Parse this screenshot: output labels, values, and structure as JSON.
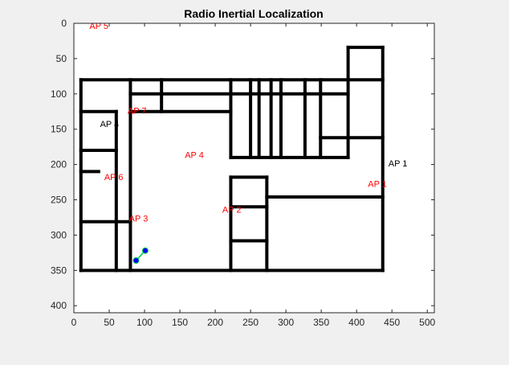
{
  "window": {
    "background": "#f0f0f0"
  },
  "chart_data": {
    "type": "scatter",
    "title": "Radio Inertial Localization",
    "xlabel": "",
    "ylabel": "",
    "xlim": [
      0,
      510
    ],
    "ylim": [
      0,
      410
    ],
    "y_reversed": true,
    "grid": false,
    "xticks": [
      0,
      50,
      100,
      150,
      200,
      250,
      300,
      350,
      400,
      450,
      500
    ],
    "yticks": [
      0,
      50,
      100,
      150,
      200,
      250,
      300,
      350,
      400
    ],
    "floor_plan_walls": [
      [
        [
          10,
          80
        ],
        [
          437,
          80
        ]
      ],
      [
        [
          10,
          350
        ],
        [
          437,
          350
        ]
      ],
      [
        [
          10,
          80
        ],
        [
          10,
          350
        ]
      ],
      [
        [
          437,
          34
        ],
        [
          437,
          350
        ]
      ],
      [
        [
          388,
          34
        ],
        [
          437,
          34
        ]
      ],
      [
        [
          388,
          34
        ],
        [
          388,
          80
        ]
      ],
      [
        [
          10,
          125
        ],
        [
          60,
          125
        ]
      ],
      [
        [
          60,
          125
        ],
        [
          60,
          350
        ]
      ],
      [
        [
          80,
          80
        ],
        [
          80,
          350
        ]
      ],
      [
        [
          10,
          180
        ],
        [
          60,
          180
        ]
      ],
      [
        [
          10,
          210
        ],
        [
          35,
          210
        ]
      ],
      [
        [
          10,
          281
        ],
        [
          80,
          281
        ]
      ],
      [
        [
          80,
          100
        ],
        [
          220,
          100
        ]
      ],
      [
        [
          124,
          80
        ],
        [
          124,
          125
        ]
      ],
      [
        [
          80,
          125
        ],
        [
          222,
          125
        ]
      ],
      [
        [
          222,
          80
        ],
        [
          222,
          190
        ]
      ],
      [
        [
          250,
          80
        ],
        [
          250,
          190
        ]
      ],
      [
        [
          262,
          80
        ],
        [
          262,
          190
        ]
      ],
      [
        [
          279,
          80
        ],
        [
          279,
          190
        ]
      ],
      [
        [
          222,
          100
        ],
        [
          388,
          100
        ]
      ],
      [
        [
          222,
          190
        ],
        [
          388,
          190
        ]
      ],
      [
        [
          293,
          80
        ],
        [
          293,
          190
        ]
      ],
      [
        [
          327,
          80
        ],
        [
          327,
          190
        ]
      ],
      [
        [
          349,
          80
        ],
        [
          349,
          190
        ]
      ],
      [
        [
          388,
          80
        ],
        [
          388,
          190
        ]
      ],
      [
        [
          349,
          162
        ],
        [
          437,
          162
        ]
      ],
      [
        [
          222,
          218
        ],
        [
          273,
          218
        ]
      ],
      [
        [
          222,
          218
        ],
        [
          222,
          350
        ]
      ],
      [
        [
          273,
          218
        ],
        [
          273,
          350
        ]
      ],
      [
        [
          222,
          260
        ],
        [
          273,
          260
        ]
      ],
      [
        [
          222,
          308
        ],
        [
          273,
          308
        ]
      ],
      [
        [
          273,
          246
        ],
        [
          437,
          246
        ]
      ]
    ],
    "access_points": [
      {
        "label": "AP 1",
        "x": 445,
        "y": 203,
        "color": "#000000"
      },
      {
        "label": "AP 1",
        "x": 416,
        "y": 232,
        "color": "#ff0000"
      },
      {
        "label": "AP 2",
        "x": 210,
        "y": 268,
        "color": "#ff0000"
      },
      {
        "label": "AP 3",
        "x": 78,
        "y": 281,
        "color": "#ff0000"
      },
      {
        "label": "AP 4",
        "x": 157,
        "y": 191,
        "color": "#ff0000"
      },
      {
        "label": "AP 4",
        "x": 37,
        "y": 147,
        "color": "#000000"
      },
      {
        "label": "AP 5",
        "x": 22,
        "y": 8,
        "color": "#ff0000"
      },
      {
        "label": "AP 6",
        "x": 43,
        "y": 222,
        "color": "#ff0000"
      },
      {
        "label": "AP 7",
        "x": 76,
        "y": 128,
        "color": "#ff0000"
      }
    ],
    "series": [
      {
        "x": [
          88,
          101
        ],
        "y": [
          336,
          322
        ],
        "line_color": "#00cc44",
        "marker_color": "#0000ff"
      }
    ],
    "colors": {
      "walls": "#000000",
      "axes": "#262626",
      "plot_bg": "#ffffff"
    }
  }
}
